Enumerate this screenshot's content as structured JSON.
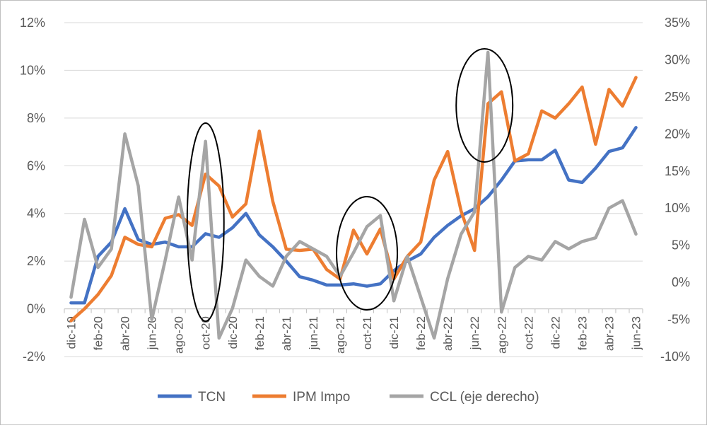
{
  "chart_data": {
    "type": "line",
    "title": "",
    "categories": [
      "dic-19",
      "ene-20",
      "feb-20",
      "mar-20",
      "abr-20",
      "may-20",
      "jun-20",
      "jul-20",
      "ago-20",
      "sep-20",
      "oct-20",
      "nov-20",
      "dic-20",
      "ene-21",
      "feb-21",
      "mar-21",
      "abr-21",
      "may-21",
      "jun-21",
      "jul-21",
      "ago-21",
      "sep-21",
      "oct-21",
      "nov-21",
      "dic-21",
      "ene-22",
      "feb-22",
      "mar-22",
      "abr-22",
      "may-22",
      "jun-22",
      "jul-22",
      "ago-22",
      "sep-22",
      "oct-22",
      "nov-22",
      "dic-22",
      "ene-23",
      "feb-23",
      "mar-23",
      "abr-23",
      "may-23",
      "jun-23"
    ],
    "x_tick_labels": [
      "dic-19",
      "feb-20",
      "abr-20",
      "jun-20",
      "ago-20",
      "oct-20",
      "dic-20",
      "feb-21",
      "abr-21",
      "jun-21",
      "ago-21",
      "oct-21",
      "dic-21",
      "feb-22",
      "abr-22",
      "jun-22",
      "ago-22",
      "oct-22",
      "dic-22",
      "feb-23",
      "abr-23",
      "jun-23"
    ],
    "y_left": {
      "min": -2,
      "max": 12,
      "step": 2,
      "tick_labels": [
        "-2%",
        "0%",
        "2%",
        "4%",
        "6%",
        "8%",
        "10%",
        "12%"
      ]
    },
    "y_right": {
      "min": -10,
      "max": 35,
      "step": 5,
      "tick_labels": [
        "-10%",
        "-5%",
        "0%",
        "5%",
        "10%",
        "15%",
        "20%",
        "25%",
        "30%",
        "35%"
      ]
    },
    "series": [
      {
        "name": "TCN",
        "axis": "left",
        "color": "#4472c4",
        "values": [
          0.25,
          0.25,
          2.2,
          2.8,
          4.2,
          2.9,
          2.7,
          2.8,
          2.6,
          2.6,
          3.15,
          3.0,
          3.4,
          4.0,
          3.1,
          2.6,
          2.0,
          1.35,
          1.2,
          1.0,
          1.0,
          1.05,
          0.95,
          1.05,
          1.6,
          2.0,
          2.3,
          3.0,
          3.5,
          3.9,
          4.2,
          4.7,
          5.4,
          6.2,
          6.25,
          6.25,
          6.65,
          5.4,
          5.3,
          5.9,
          6.6,
          6.75,
          7.6
        ]
      },
      {
        "name": "IPM Impo",
        "axis": "left",
        "color": "#ed7d31",
        "values": [
          -0.5,
          0.0,
          0.6,
          1.4,
          3.0,
          2.7,
          2.6,
          3.8,
          3.95,
          3.5,
          5.65,
          5.15,
          3.85,
          4.4,
          7.45,
          4.5,
          2.5,
          2.45,
          2.5,
          1.65,
          1.25,
          3.3,
          2.3,
          3.35,
          1.25,
          2.2,
          2.8,
          5.4,
          6.6,
          4.1,
          2.45,
          8.6,
          9.1,
          6.2,
          6.5,
          8.3,
          8.0,
          8.6,
          9.3,
          6.9,
          9.2,
          8.5,
          9.7
        ]
      },
      {
        "name": "CCL (eje derecho)",
        "axis": "right",
        "color": "#a5a5a5",
        "values": [
          -2,
          8.5,
          2,
          4.5,
          20,
          13,
          -5,
          3,
          11.5,
          3,
          19,
          -7.5,
          -3.5,
          3,
          0.8,
          -0.5,
          3.5,
          5.5,
          4.5,
          3.5,
          0.8,
          4,
          7.5,
          9,
          -2.5,
          3.5,
          -2,
          -7.5,
          0.5,
          6.5,
          9.5,
          31,
          -4,
          2,
          3.5,
          3,
          5.5,
          4.5,
          5.5,
          6,
          10,
          11,
          6.5
        ]
      }
    ],
    "annotations": [
      {
        "type": "ellipse",
        "around": "oct-20"
      },
      {
        "type": "ellipse",
        "around": "oct-21"
      },
      {
        "type": "ellipse",
        "around": "jul-22"
      }
    ],
    "grid": true,
    "legend": "bottom",
    "legend_labels": [
      "TCN",
      "IPM Impo",
      "CCL (eje derecho)"
    ]
  }
}
